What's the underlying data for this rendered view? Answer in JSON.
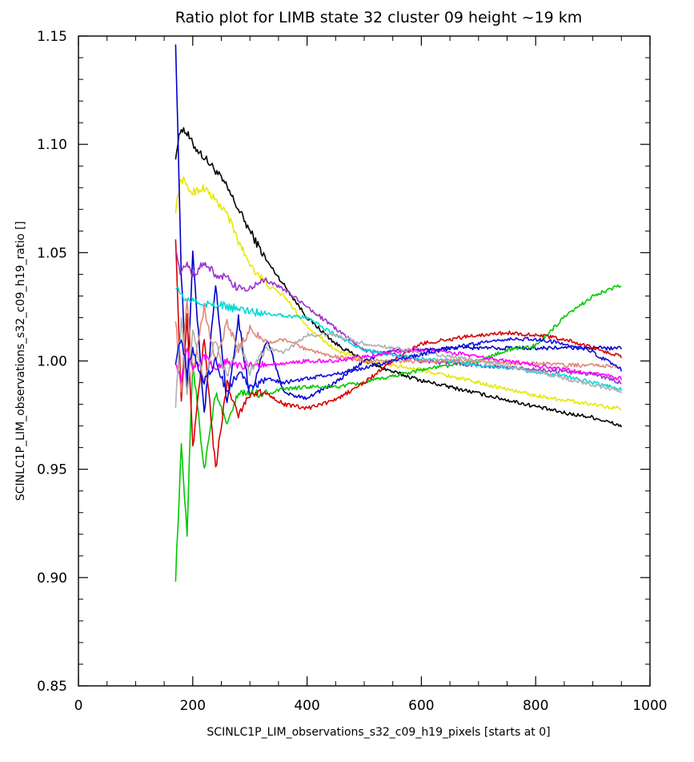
{
  "chart_data": {
    "type": "line",
    "title": "Ratio plot for LIMB state 32 cluster 09 height ~19 km",
    "xlabel": "SCINLC1P_LIM_observations_s32_c09_h19_pixels [starts at 0]",
    "ylabel": "SCINLC1P_LIM_observations_s32_c09_h19_ratio []",
    "xlim": [
      0,
      1000
    ],
    "ylim": [
      0.85,
      1.15
    ],
    "x_ticks": [
      "0",
      "200",
      "400",
      "600",
      "800",
      "1000"
    ],
    "y_ticks": [
      "0.85",
      "0.90",
      "0.95",
      "1.00",
      "1.05",
      "1.10",
      "1.15"
    ],
    "grid": false,
    "legend": "none",
    "x": [
      170,
      180,
      190,
      200,
      220,
      240,
      260,
      280,
      300,
      330,
      360,
      400,
      450,
      500,
      550,
      600,
      650,
      700,
      750,
      800,
      850,
      900,
      950
    ],
    "series": [
      {
        "color": "#000000",
        "values": [
          1.095,
          1.108,
          1.105,
          1.1,
          1.094,
          1.088,
          1.08,
          1.07,
          1.06,
          1.046,
          1.035,
          1.02,
          1.008,
          1.0,
          0.995,
          0.991,
          0.988,
          0.985,
          0.982,
          0.979,
          0.976,
          0.974,
          0.97
        ]
      },
      {
        "color": "#e8e800",
        "values": [
          1.07,
          1.085,
          1.08,
          1.078,
          1.08,
          1.074,
          1.068,
          1.055,
          1.045,
          1.035,
          1.03,
          1.016,
          1.005,
          1.0,
          0.998,
          0.996,
          0.993,
          0.99,
          0.987,
          0.984,
          0.982,
          0.98,
          0.978
        ]
      },
      {
        "color": "#0000c8",
        "values": [
          1.148,
          1.04,
          0.985,
          1.05,
          0.975,
          1.035,
          0.98,
          1.02,
          0.983,
          1.01,
          0.985,
          0.983,
          0.99,
          1.0,
          1.005,
          1.005,
          1.006,
          1.006,
          1.006,
          1.006,
          1.006,
          1.006,
          1.006
        ]
      },
      {
        "color": "#00c800",
        "values": [
          0.9,
          0.96,
          0.92,
          1.0,
          0.95,
          0.985,
          0.97,
          0.985,
          0.985,
          0.985,
          0.987,
          0.988,
          0.988,
          0.99,
          0.993,
          0.996,
          0.998,
          1.0,
          1.005,
          1.007,
          1.02,
          1.03,
          1.035
        ]
      },
      {
        "color": "#d80000",
        "values": [
          1.058,
          0.98,
          1.02,
          0.96,
          1.01,
          0.95,
          0.99,
          0.975,
          0.985,
          0.985,
          0.98,
          0.978,
          0.982,
          0.99,
          1.0,
          1.008,
          1.01,
          1.012,
          1.013,
          1.012,
          1.01,
          1.006,
          1.002
        ]
      },
      {
        "color": "#9933cc",
        "values": [
          1.05,
          1.04,
          1.045,
          1.04,
          1.045,
          1.04,
          1.038,
          1.033,
          1.034,
          1.037,
          1.033,
          1.025,
          1.015,
          1.005,
          1.003,
          1.0,
          0.999,
          0.998,
          0.997,
          0.996,
          0.995,
          0.994,
          0.99
        ]
      },
      {
        "color": "#00d8d8",
        "values": [
          1.035,
          1.03,
          1.028,
          1.028,
          1.026,
          1.026,
          1.025,
          1.024,
          1.023,
          1.022,
          1.021,
          1.02,
          1.012,
          1.005,
          1.003,
          1.001,
          1.0,
          0.998,
          0.997,
          0.995,
          0.993,
          0.99,
          0.987
        ]
      },
      {
        "color": "#e08878",
        "values": [
          1.02,
          0.985,
          1.03,
          0.995,
          1.025,
          1.0,
          1.018,
          1.005,
          1.015,
          1.008,
          1.01,
          1.005,
          1.002,
          1.0,
          1.0,
          1.0,
          1.0,
          1.0,
          0.999,
          0.999,
          0.998,
          0.998,
          0.997
        ]
      },
      {
        "color": "#ff00ff",
        "values": [
          1.0,
          0.99,
          1.005,
          0.995,
          1.002,
          0.996,
          1.0,
          0.997,
          0.999,
          0.998,
          0.999,
          1.0,
          1.0,
          1.002,
          1.004,
          1.005,
          1.004,
          1.002,
          1.0,
          0.998,
          0.996,
          0.994,
          0.992
        ]
      },
      {
        "color": "#b0b0b0",
        "values": [
          0.98,
          1.02,
          0.985,
          1.015,
          0.99,
          1.01,
          0.992,
          1.008,
          0.995,
          1.006,
          1.004,
          1.012,
          1.012,
          1.008,
          1.006,
          1.004,
          1.002,
          1.0,
          0.998,
          0.995,
          0.992,
          0.989,
          0.986
        ]
      },
      {
        "color": "#1010e0",
        "values": [
          1.0,
          1.01,
          0.995,
          1.005,
          0.99,
          1.0,
          0.985,
          0.995,
          0.988,
          0.992,
          0.99,
          0.992,
          0.994,
          0.997,
          1.0,
          1.003,
          1.006,
          1.008,
          1.01,
          1.01,
          1.008,
          1.004,
          0.996
        ]
      }
    ]
  }
}
